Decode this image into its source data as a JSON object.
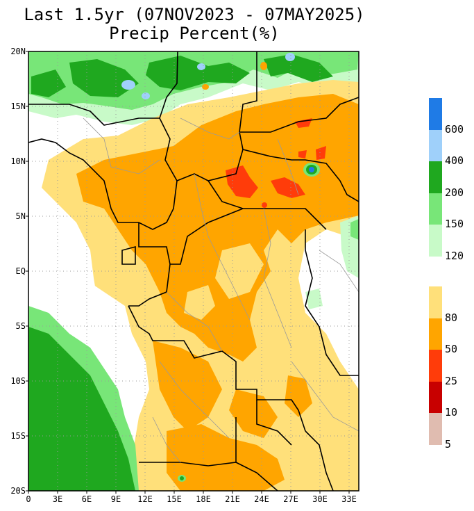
{
  "title": {
    "line1": "Last 1.5yr (07NOV2023 - 07MAY2025)",
    "line2": "Precip Percent(%)"
  },
  "map": {
    "lat_labels": [
      "20N",
      "15N",
      "10N",
      "5N",
      "EQ",
      "5S",
      "10S",
      "15S",
      "20S"
    ],
    "lon_labels": [
      "0",
      "3E",
      "6E",
      "9E",
      "12E",
      "15E",
      "18E",
      "21E",
      "24E",
      "27E",
      "30E",
      "33E"
    ],
    "lat_range": [
      -20,
      20
    ],
    "lon_range": [
      0,
      34
    ],
    "colors": {
      "wet_high": "#1f7be6",
      "wet_600": "#9fd0fa",
      "wet_400": "#1fa81f",
      "wet_200": "#78e678",
      "wet_150": "#c8fac8",
      "dry_80": "#ffe07a",
      "dry_50": "#ffa500",
      "dry_25": "#ff3c0a",
      "dry_10": "#c80000",
      "dry_5": "#e0bcb0",
      "normal": "#ffffff",
      "border": "#000000",
      "subborder": "#9a9a9a"
    }
  },
  "legend": {
    "wet": [
      {
        "label": "600",
        "color": "#1f7be6"
      },
      {
        "label": "400",
        "color": "#9fd0fa"
      },
      {
        "label": "200",
        "color": "#1fa81f"
      },
      {
        "label": "150",
        "color": "#78e678"
      },
      {
        "label": "120",
        "color": "#c8fac8"
      }
    ],
    "dry": [
      {
        "label": "80",
        "color": "#ffe07a"
      },
      {
        "label": "50",
        "color": "#ffa500"
      },
      {
        "label": "25",
        "color": "#ff3c0a"
      },
      {
        "label": "10",
        "color": "#c80000"
      },
      {
        "label": "5",
        "color": "#e0bcb0"
      }
    ]
  }
}
